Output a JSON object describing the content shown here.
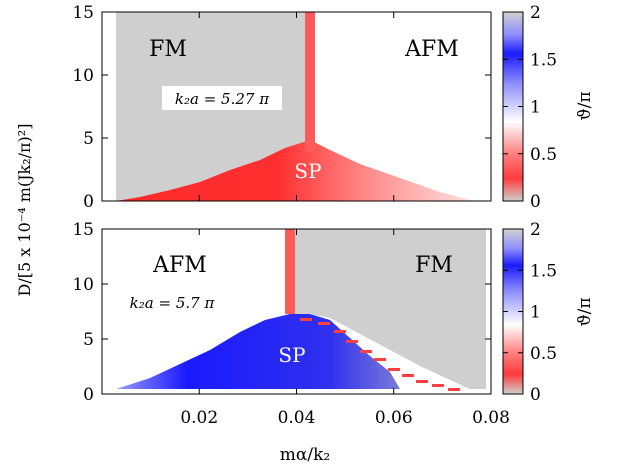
{
  "figure": {
    "ylabel": "D/[5 x 10⁻⁴  m(Jk₂/π)²]",
    "xlabel": "mα/k₂"
  },
  "chart_data": [
    {
      "type": "heatmap",
      "panel": "top",
      "x_ticks": [
        "0.02",
        "0.04",
        "0.06",
        "0.08"
      ],
      "y_ticks": [
        "0",
        "5",
        "10",
        "15"
      ],
      "xlim": [
        0.0,
        0.08
      ],
      "ylim": [
        0,
        15
      ],
      "region_labels": {
        "left": "FM",
        "right": "AFM",
        "center": "SP"
      },
      "annotation": "k₂a = 5.27 π",
      "colorbar": {
        "label": "ϑ/π",
        "ticks": [
          "0",
          "0.5",
          "1",
          "1.5",
          "2"
        ],
        "range": [
          0,
          2
        ]
      },
      "phase_boundary": {
        "x": [
          0.012,
          0.02,
          0.03,
          0.04,
          0.047,
          0.055,
          0.065,
          0.075,
          0.078
        ],
        "y": [
          0.2,
          0.9,
          2.0,
          3.3,
          5.0,
          3.8,
          2.0,
          0.6,
          0.2
        ]
      },
      "stripe_x": 0.047
    },
    {
      "type": "heatmap",
      "panel": "bottom",
      "x_ticks": [
        "0.02",
        "0.04",
        "0.06",
        "0.08"
      ],
      "y_ticks": [
        "0",
        "5",
        "10",
        "15"
      ],
      "xlim": [
        0.0,
        0.08
      ],
      "ylim": [
        0,
        15
      ],
      "region_labels": {
        "left": "AFM",
        "right": "FM",
        "center": "SP"
      },
      "annotation": "k₂a = 5.7 π",
      "colorbar": {
        "label": "ϑ/π",
        "ticks": [
          "0",
          "0.5",
          "1",
          "1.5",
          "2"
        ],
        "range": [
          0,
          2
        ]
      },
      "phase_boundary": {
        "x": [
          0.011,
          0.02,
          0.03,
          0.038,
          0.044,
          0.05,
          0.06,
          0.07,
          0.075
        ],
        "y": [
          0.2,
          1.2,
          3.4,
          6.2,
          7.2,
          5.8,
          3.0,
          1.0,
          0.3
        ]
      },
      "stripe_x": 0.043
    }
  ]
}
